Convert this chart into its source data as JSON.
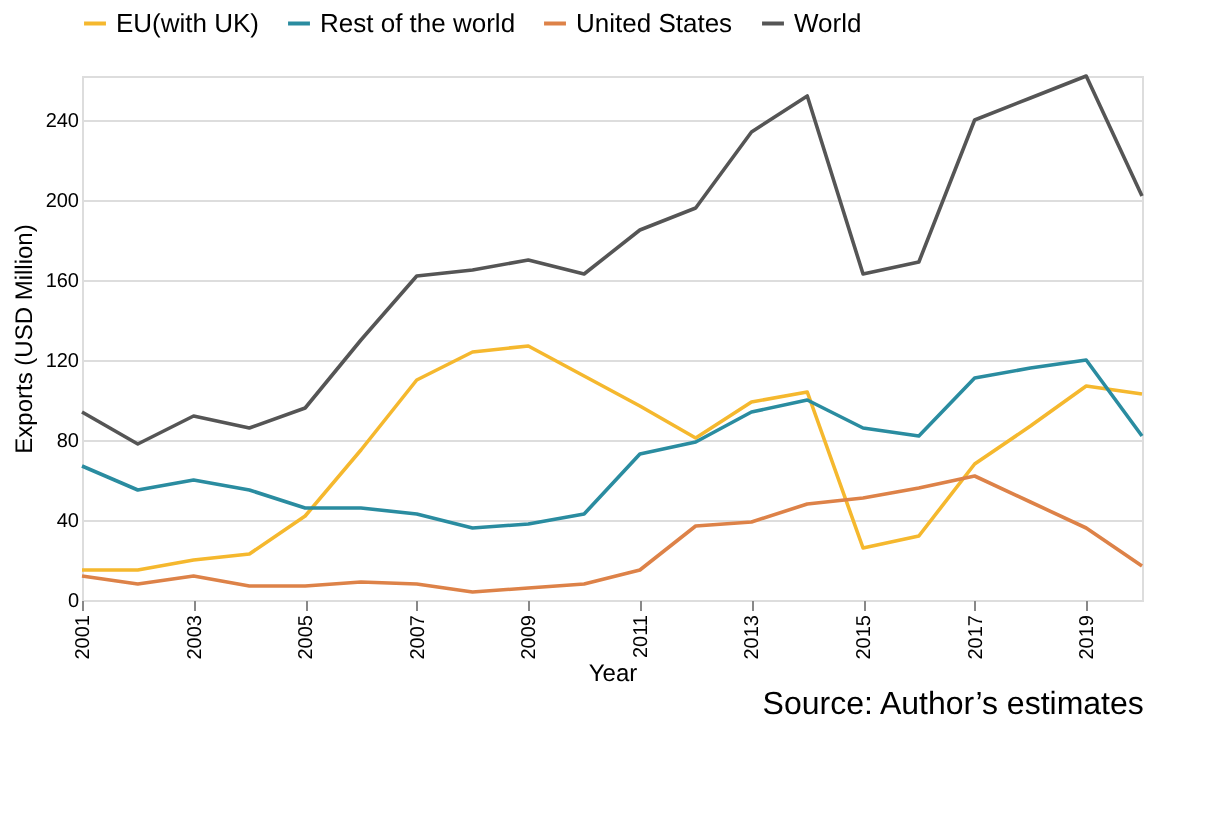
{
  "chart_data": {
    "type": "line",
    "xlabel": "Year",
    "ylabel": "Exports (USD Million)",
    "x": [
      2001,
      2002,
      2003,
      2004,
      2005,
      2006,
      2007,
      2008,
      2009,
      2010,
      2011,
      2012,
      2013,
      2014,
      2015,
      2016,
      2017,
      2018,
      2019,
      2020
    ],
    "series": [
      {
        "name": "EU(with UK)",
        "color": "#f5b82e",
        "values": [
          15,
          15,
          20,
          23,
          42,
          75,
          110,
          124,
          127,
          112,
          97,
          81,
          99,
          104,
          26,
          32,
          68,
          87,
          107,
          103
        ]
      },
      {
        "name": "Rest of the world",
        "color": "#2a8ca0",
        "values": [
          67,
          55,
          60,
          55,
          46,
          46,
          43,
          36,
          38,
          43,
          73,
          79,
          94,
          100,
          86,
          82,
          111,
          116,
          120,
          82
        ]
      },
      {
        "name": "United States",
        "color": "#dd8248",
        "values": [
          12,
          8,
          12,
          7,
          7,
          9,
          8,
          4,
          6,
          8,
          15,
          37,
          39,
          48,
          51,
          56,
          62,
          49,
          36,
          17
        ]
      },
      {
        "name": "World",
        "color": "#555555",
        "values": [
          94,
          78,
          92,
          86,
          96,
          130,
          162,
          165,
          170,
          163,
          185,
          196,
          234,
          252,
          163,
          169,
          240,
          251,
          262,
          202
        ]
      }
    ],
    "xlim": [
      2001,
      2020
    ],
    "xticks": [
      2001,
      2003,
      2005,
      2007,
      2009,
      2011,
      2013,
      2015,
      2017,
      2019
    ],
    "ylim": [
      0,
      262
    ],
    "yticks": [
      0,
      40,
      80,
      120,
      160,
      200,
      240
    ],
    "grid": "y",
    "legend": "top",
    "annotations": [
      "Source: Author’s estimates"
    ]
  }
}
